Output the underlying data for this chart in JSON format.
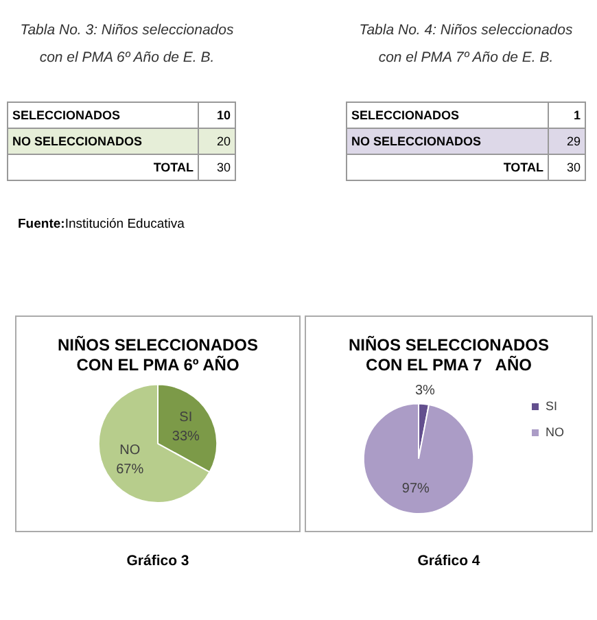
{
  "chart_data": [
    {
      "type": "pie",
      "title": "NIÑOS SELECCIONADOS CON EL PMA 6º AÑO",
      "categories": [
        "SI",
        "NO"
      ],
      "values": [
        33,
        67
      ],
      "colors": [
        "#7c9a48",
        "#b7cd8c"
      ],
      "value_labels": [
        "33%",
        "67%"
      ],
      "legend": false,
      "annotations": [
        "Tabla No. 3: Niños seleccionados",
        "con el PMA 6º Año de E. B.",
        "SELECCIONADOS",
        "10",
        "NO SELECCIONADOS",
        "20",
        "TOTAL",
        "30",
        "Gráfico 3",
        "Fuente:Institución Educativa"
      ]
    },
    {
      "type": "pie",
      "title": "NIÑOS SELECCIONADOS CON EL PMA 7   AÑO",
      "categories": [
        "SI",
        "NO"
      ],
      "values": [
        3,
        97
      ],
      "colors": [
        "#634f8e",
        "#ab9cc6"
      ],
      "value_labels": [
        "3%",
        "97%"
      ],
      "legend": "right",
      "annotations": [
        "Tabla No. 4: Niños seleccionados",
        "con el PMA 7º Año de E. B.",
        "SELECCIONADOS",
        "1",
        "NO SELECCIONADOS",
        "29",
        "TOTAL",
        "30",
        "Gráfico 4"
      ]
    }
  ]
}
